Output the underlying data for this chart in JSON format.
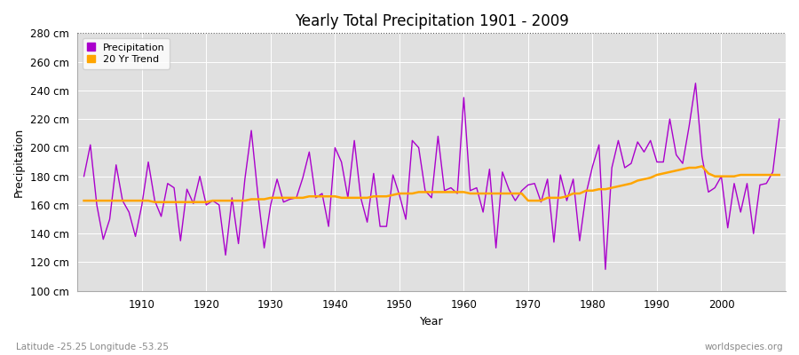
{
  "title": "Yearly Total Precipitation 1901 - 2009",
  "xlabel": "Year",
  "ylabel": "Precipitation",
  "subtitle": "Latitude -25.25 Longitude -53.25",
  "watermark": "worldspecies.org",
  "precip_color": "#aa00cc",
  "trend_color": "#ffa500",
  "bg_color": "#e0e0e0",
  "ylim": [
    100,
    280
  ],
  "ytick_step": 20,
  "years": [
    1901,
    1902,
    1903,
    1904,
    1905,
    1906,
    1907,
    1908,
    1909,
    1910,
    1911,
    1912,
    1913,
    1914,
    1915,
    1916,
    1917,
    1918,
    1919,
    1920,
    1921,
    1922,
    1923,
    1924,
    1925,
    1926,
    1927,
    1928,
    1929,
    1930,
    1931,
    1932,
    1933,
    1934,
    1935,
    1936,
    1937,
    1938,
    1939,
    1940,
    1941,
    1942,
    1943,
    1944,
    1945,
    1946,
    1947,
    1948,
    1949,
    1950,
    1951,
    1952,
    1953,
    1954,
    1955,
    1956,
    1957,
    1958,
    1959,
    1960,
    1961,
    1962,
    1963,
    1964,
    1965,
    1966,
    1967,
    1968,
    1969,
    1970,
    1971,
    1972,
    1973,
    1974,
    1975,
    1976,
    1977,
    1978,
    1979,
    1980,
    1981,
    1982,
    1983,
    1984,
    1985,
    1986,
    1987,
    1988,
    1989,
    1990,
    1991,
    1992,
    1993,
    1994,
    1995,
    1996,
    1997,
    1998,
    1999,
    2000,
    2001,
    2002,
    2003,
    2004,
    2005,
    2006,
    2007,
    2008,
    2009
  ],
  "precipitation": [
    180,
    202,
    160,
    136,
    150,
    188,
    163,
    155,
    138,
    160,
    190,
    163,
    152,
    175,
    172,
    135,
    171,
    161,
    180,
    160,
    163,
    160,
    125,
    165,
    133,
    178,
    212,
    168,
    130,
    160,
    178,
    162,
    164,
    165,
    179,
    197,
    165,
    168,
    145,
    200,
    190,
    165,
    205,
    165,
    148,
    182,
    145,
    145,
    181,
    167,
    150,
    205,
    200,
    170,
    165,
    208,
    170,
    172,
    168,
    235,
    170,
    172,
    155,
    185,
    130,
    183,
    171,
    163,
    170,
    174,
    175,
    162,
    178,
    134,
    181,
    163,
    178,
    135,
    168,
    187,
    202,
    115,
    186,
    205,
    186,
    189,
    204,
    197,
    205,
    190,
    190,
    220,
    195,
    189,
    215,
    245,
    194,
    169,
    172,
    180,
    144,
    175,
    155,
    175,
    140,
    174,
    175,
    183,
    220
  ],
  "trend": [
    163,
    163,
    163,
    163,
    163,
    163,
    163,
    163,
    163,
    163,
    163,
    162,
    162,
    162,
    162,
    162,
    162,
    162,
    162,
    162,
    163,
    163,
    163,
    163,
    163,
    163,
    164,
    164,
    164,
    165,
    165,
    165,
    165,
    165,
    165,
    166,
    166,
    166,
    166,
    166,
    165,
    165,
    165,
    165,
    165,
    166,
    166,
    166,
    167,
    168,
    168,
    168,
    169,
    169,
    169,
    169,
    169,
    169,
    169,
    169,
    168,
    168,
    168,
    168,
    168,
    168,
    168,
    168,
    168,
    163,
    163,
    163,
    165,
    165,
    165,
    166,
    168,
    168,
    170,
    170,
    171,
    171,
    172,
    173,
    174,
    175,
    177,
    178,
    179,
    181,
    182,
    183,
    184,
    185,
    186,
    186,
    187,
    182,
    180,
    180,
    180,
    180,
    181,
    181,
    181,
    181,
    181,
    181,
    181
  ]
}
